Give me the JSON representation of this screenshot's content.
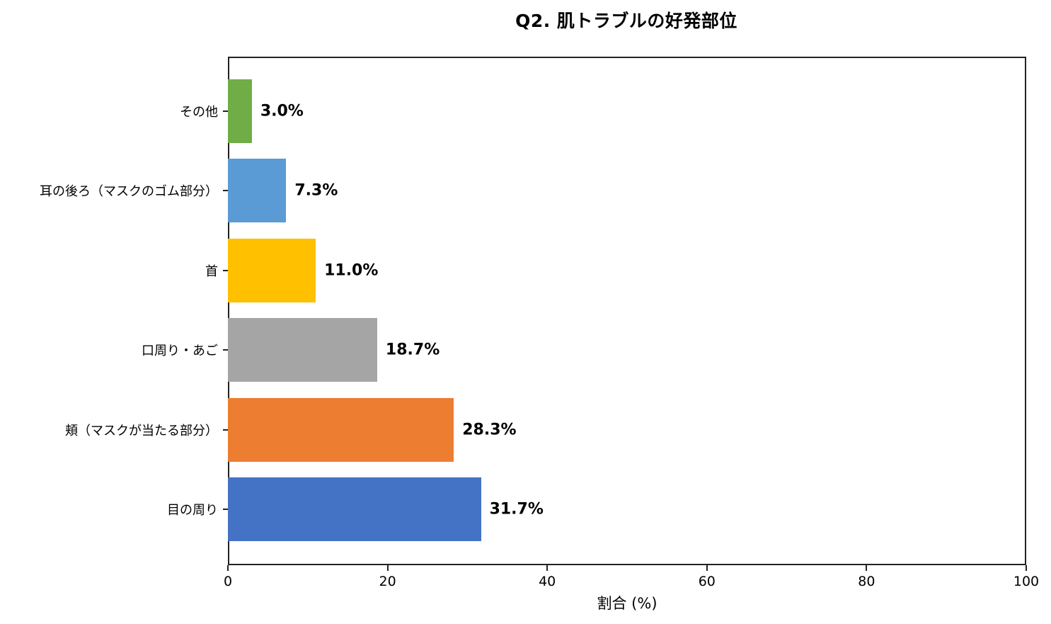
{
  "chart_data": {
    "type": "bar",
    "orientation": "horizontal",
    "title": "Q2. 肌トラブルの好発部位",
    "xlabel": "割合 (%)",
    "ylabel": "",
    "xlim": [
      0,
      100
    ],
    "xticks": [
      "0",
      "20",
      "40",
      "60",
      "80",
      "100"
    ],
    "grid": false,
    "legend": null,
    "categories": [
      "目の周り",
      "頬（マスクが当たる部分）",
      "口周り・あご",
      "首",
      "耳の後ろ（マスクのゴム部分）",
      "その他"
    ],
    "values": [
      31.7,
      28.3,
      18.7,
      11.0,
      7.3,
      3.0
    ],
    "value_labels": [
      "31.7%",
      "28.3%",
      "18.7%",
      "11.0%",
      "7.3%",
      "3.0%"
    ],
    "colors": [
      "#4472C4",
      "#ED7D31",
      "#A5A5A5",
      "#FFC000",
      "#5B9BD5",
      "#70AD47"
    ]
  }
}
